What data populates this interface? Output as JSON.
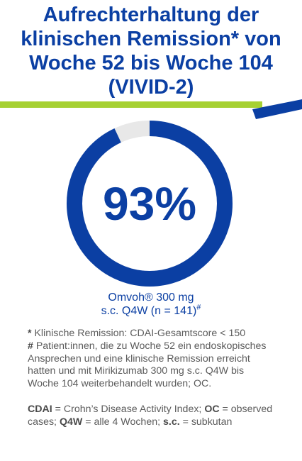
{
  "title_lines": [
    "Aufrechterhaltung der",
    "klinischen Remission* von",
    "Woche 52 bis Woche 104",
    "(VIVID-2)"
  ],
  "colors": {
    "primary_blue": "#0b3fa3",
    "accent_green": "#a6d133",
    "ring_background": "#e8e8e8",
    "note_text": "#5b5b5b"
  },
  "chart_data": {
    "type": "pie",
    "values": [
      93,
      7
    ],
    "center_label": "93%",
    "series_label_line1": "Omvoh® 300 mg",
    "series_label_line2": "s.c. Q4W (n = 141)",
    "series_label_sup": "#"
  },
  "notes": {
    "n1_mark": "*",
    "n1_text": " Klinische Remission: CDAI-Gesamtscore < 150",
    "n2_mark": "#",
    "n2_text": " Patient:innen, die zu Woche 52 ein endoskopisches Ansprechen  und eine klinische Remission erreicht hatten und mit Mirikizumab 300 mg s.c. Q4W bis Woche 104 weiterbehandelt wurden; OC.",
    "abbr_cdai": "CDAI",
    "abbr_cdai_def": " = Crohn’s Disease Activity Index; ",
    "abbr_oc": "OC",
    "abbr_oc_def": " = observed cases; ",
    "abbr_q4w": "Q4W",
    "abbr_q4w_def": " = alle 4 Wochen; ",
    "abbr_sc": "s.c.",
    "abbr_sc_def": " = subkutan"
  }
}
